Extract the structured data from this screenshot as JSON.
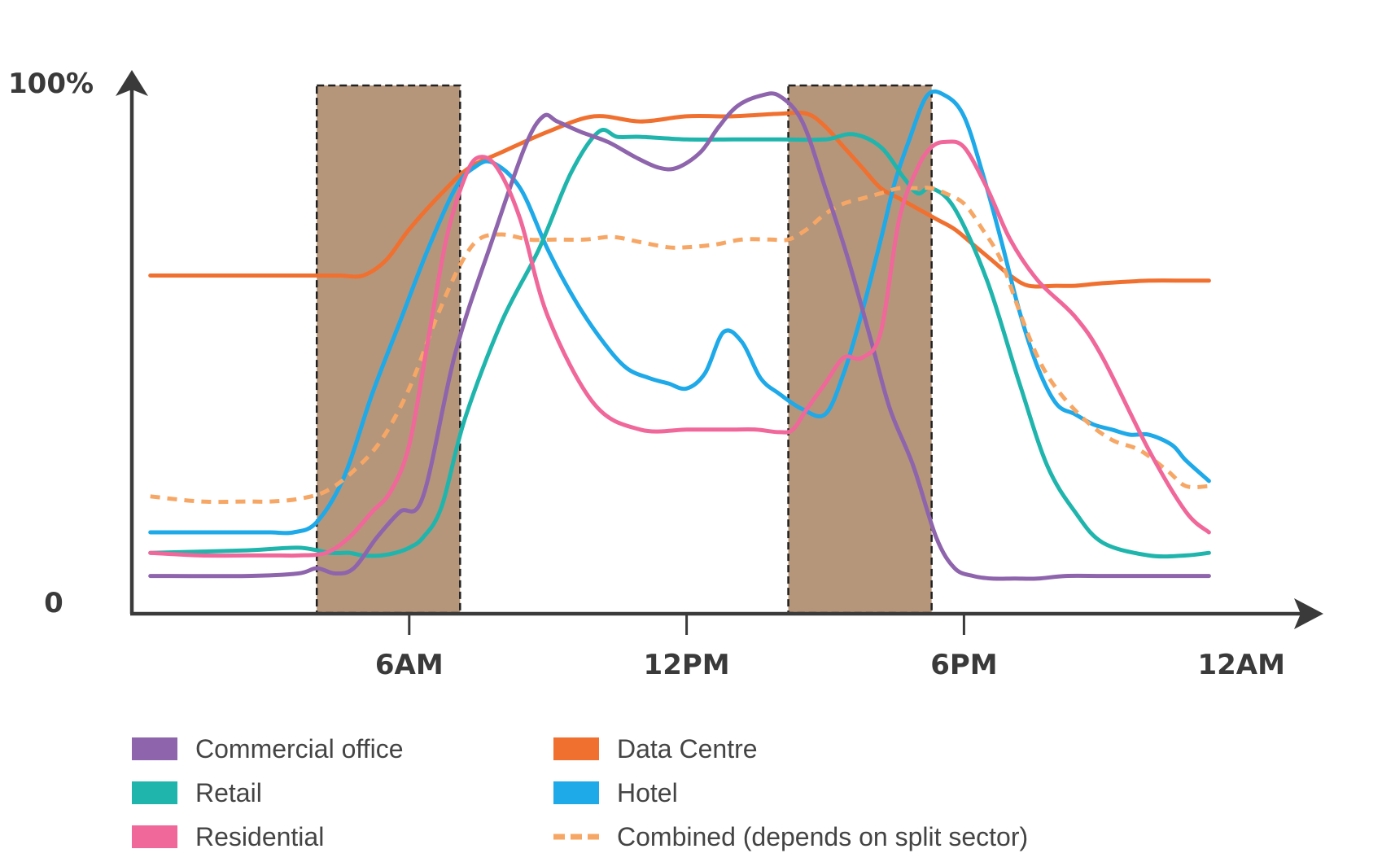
{
  "chart_data": {
    "type": "line",
    "title": "",
    "xlabel": "",
    "ylabel": "",
    "x_range_hours": [
      0,
      24
    ],
    "ylim": [
      0,
      100
    ],
    "y_ticks": [
      {
        "value": 0,
        "label": "0"
      },
      {
        "value": 100,
        "label": "100%"
      }
    ],
    "x_ticks": [
      {
        "hour": 6,
        "label": "6AM"
      },
      {
        "hour": 12,
        "label": "12PM"
      },
      {
        "hour": 18,
        "label": "6PM"
      },
      {
        "hour": 24,
        "label": "12AM"
      }
    ],
    "peak_bands": [
      {
        "name": "morning-peak",
        "start_hour": 4.0,
        "end_hour": 7.1,
        "color": "#b5967a"
      },
      {
        "name": "evening-peak",
        "start_hour": 14.2,
        "end_hour": 17.3,
        "color": "#b5967a"
      }
    ],
    "series": [
      {
        "name": "Commercial office",
        "color": "#8e64ac",
        "dashed": false,
        "x": [
          0.4,
          2.5,
          3.6,
          4.0,
          4.4,
          4.8,
          5.3,
          5.8,
          6.3,
          7.0,
          7.8,
          8.5,
          8.9,
          9.2,
          9.7,
          10.3,
          10.9,
          11.4,
          11.8,
          12.3,
          12.7,
          13.1,
          13.6,
          14.0,
          14.5,
          15.0,
          15.5,
          16.0,
          16.4,
          16.9,
          17.4,
          17.8,
          18.2,
          18.6,
          19.1,
          19.6,
          20.2,
          21.0,
          22.0,
          22.8,
          23.3
        ],
        "y": [
          4.5,
          4.5,
          5,
          6,
          5,
          6,
          12,
          17,
          20,
          48,
          70,
          88,
          94,
          93,
          91,
          89,
          86,
          84,
          84,
          87,
          92,
          96,
          98,
          98,
          93,
          80,
          66,
          50,
          37,
          26,
          12,
          6,
          4.5,
          4,
          4,
          4,
          4.5,
          4.5,
          4.5,
          4.5,
          4.5
        ]
      },
      {
        "name": "Retail",
        "color": "#1fb5ad",
        "dashed": false,
        "x": [
          0.4,
          2.5,
          3.6,
          4.3,
          4.7,
          5.0,
          5.4,
          5.7,
          6.0,
          6.3,
          6.7,
          7.2,
          8.0,
          8.8,
          9.5,
          10.1,
          10.5,
          11.0,
          12.0,
          13.0,
          14.0,
          15.0,
          15.6,
          16.2,
          16.7,
          17.0,
          17.3,
          17.8,
          18.5,
          19.2,
          19.8,
          20.4,
          21.0,
          22.0,
          22.8,
          23.3
        ],
        "y": [
          9,
          9.5,
          10,
          9,
          9,
          8.5,
          8.5,
          9,
          10,
          12,
          18,
          35,
          54,
          68,
          83,
          91,
          90,
          90,
          89.5,
          89.5,
          89.5,
          89.5,
          90.5,
          88,
          82,
          79,
          80,
          76,
          62,
          42,
          26,
          17,
          11,
          8.5,
          8.5,
          9
        ]
      },
      {
        "name": "Residential",
        "color": "#f0679a",
        "dashed": false,
        "x": [
          0.4,
          1.5,
          2.5,
          3.2,
          3.6,
          4.2,
          4.7,
          5.2,
          5.6,
          6.0,
          6.4,
          6.8,
          7.2,
          7.5,
          7.9,
          8.4,
          9.0,
          10.0,
          11.0,
          12.0,
          12.5,
          13.0,
          13.5,
          14.0,
          14.3,
          14.6,
          15.0,
          15.4,
          15.8,
          16.2,
          16.6,
          17.0,
          17.3,
          17.6,
          18.0,
          18.5,
          19.0,
          19.6,
          20.4,
          21.0,
          22.0,
          22.8,
          23.3
        ],
        "y": [
          9,
          8.5,
          8.5,
          8.5,
          8.5,
          9,
          12,
          17,
          21,
          30,
          50,
          70,
          82,
          86,
          84,
          74,
          55,
          38,
          33,
          33,
          33,
          33,
          33,
          32.5,
          33,
          37,
          42,
          47,
          47,
          52,
          74,
          84,
          88,
          89,
          88,
          80,
          70,
          62,
          55,
          47,
          29,
          17,
          13
        ]
      },
      {
        "name": "Data Centre",
        "color": "#f07030",
        "dashed": false,
        "x": [
          0.4,
          2.0,
          3.0,
          4.0,
          4.5,
          5.0,
          5.5,
          6.0,
          6.7,
          7.3,
          8.0,
          9.0,
          10.0,
          11.0,
          12.0,
          13.0,
          14.0,
          14.6,
          15.0,
          15.4,
          15.8,
          16.2,
          16.6,
          17.0,
          17.4,
          17.8,
          18.2,
          18.6,
          19.0,
          19.4,
          20.0,
          20.4,
          21.0,
          22.0,
          22.8,
          23.3
        ],
        "y": [
          63,
          63,
          63,
          63,
          63,
          63,
          66,
          72,
          79,
          84,
          87,
          91,
          94,
          93,
          94,
          94,
          94.5,
          94.5,
          92,
          88,
          84,
          80,
          78,
          76,
          74,
          72,
          69,
          66,
          63,
          61,
          61,
          61,
          61.5,
          62,
          62,
          62
        ]
      },
      {
        "name": "Hotel",
        "color": "#1ea9e8",
        "dashed": false,
        "x": [
          0.4,
          1.5,
          2.5,
          3.0,
          3.5,
          4.0,
          4.6,
          5.2,
          5.8,
          6.4,
          7.0,
          7.4,
          7.8,
          8.4,
          9.0,
          9.6,
          10.2,
          10.7,
          11.2,
          11.6,
          12.0,
          12.4,
          12.8,
          13.2,
          13.6,
          14.0,
          14.5,
          15.0,
          15.4,
          15.8,
          16.2,
          16.5,
          16.8,
          17.2,
          17.6,
          18.0,
          18.4,
          18.8,
          19.2,
          19.6,
          20.0,
          20.4,
          20.8,
          21.2,
          21.6,
          22.0,
          22.5,
          22.8,
          23.3
        ],
        "y": [
          13,
          13,
          13,
          13,
          13,
          15,
          24,
          40,
          54,
          68,
          80,
          84,
          85,
          80,
          68,
          58,
          50,
          45,
          43,
          42,
          41,
          44,
          52,
          50,
          43,
          40,
          37,
          36,
          44,
          56,
          70,
          81,
          89,
          98,
          98,
          94,
          83,
          70,
          56,
          45,
          38,
          36,
          34,
          33,
          32,
          32,
          30,
          27,
          23
        ]
      },
      {
        "name": "Combined (depends on split sector)",
        "color": "#f7a765",
        "dashed": true,
        "x": [
          0.4,
          1.5,
          2.5,
          3.0,
          3.6,
          4.2,
          4.8,
          5.4,
          6.0,
          6.6,
          7.1,
          7.5,
          8.0,
          8.6,
          9.2,
          9.8,
          10.4,
          11.0,
          11.6,
          12.0,
          12.6,
          13.2,
          13.8,
          14.2,
          14.6,
          15.0,
          15.4,
          15.8,
          16.2,
          16.6,
          17.0,
          17.3,
          17.6,
          18.0,
          18.4,
          18.8,
          19.2,
          19.6,
          20.0,
          20.6,
          21.2,
          21.8,
          22.4,
          22.8,
          23.3
        ],
        "y": [
          20,
          19,
          19,
          19,
          19.5,
          21,
          25,
          31,
          41,
          55,
          65,
          70,
          71,
          70,
          70,
          70,
          70.5,
          69.5,
          68.5,
          68.5,
          69,
          70,
          70,
          70,
          72,
          75,
          77,
          78,
          79,
          80,
          80,
          80,
          79,
          77,
          72,
          66,
          56,
          47,
          41,
          35,
          31,
          29,
          25,
          22,
          22
        ]
      }
    ],
    "legend": {
      "placement": "bottom",
      "columns": 2
    }
  }
}
